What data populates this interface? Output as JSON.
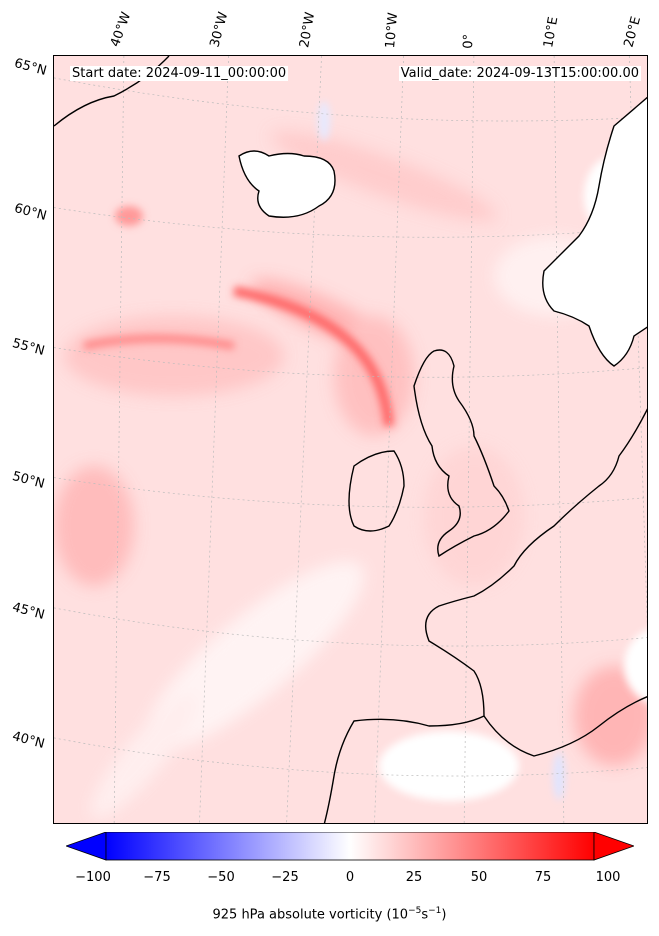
{
  "header": {
    "start_date": "Start date: 2024-09-11_00:00:00",
    "valid_date": "Valid_date: 2024-09-13T15:00:00.00"
  },
  "lon_labels": [
    "40°W",
    "30°W",
    "20°W",
    "10°W",
    "0°",
    "10°E",
    "20°E"
  ],
  "lat_labels": [
    "65°N",
    "60°N",
    "55°N",
    "50°N",
    "45°N",
    "40°N"
  ],
  "colorbar": {
    "ticks": [
      "−100",
      "−75",
      "−50",
      "−25",
      "0",
      "25",
      "50",
      "75",
      "100"
    ],
    "label_main": "925 hPa absolute vorticity (10",
    "label_sup1": "−5",
    "label_mid": "s",
    "label_sup2": "−1",
    "label_end": ")",
    "min": -100,
    "max": 100,
    "colors": {
      "negative": "#0000ff",
      "zero": "#ffffff",
      "positive": "#ff0000"
    },
    "extend": "both"
  },
  "map": {
    "land_outline_color": "#000000",
    "background_field_color": "#ffe3e3",
    "gridlines": true
  }
}
